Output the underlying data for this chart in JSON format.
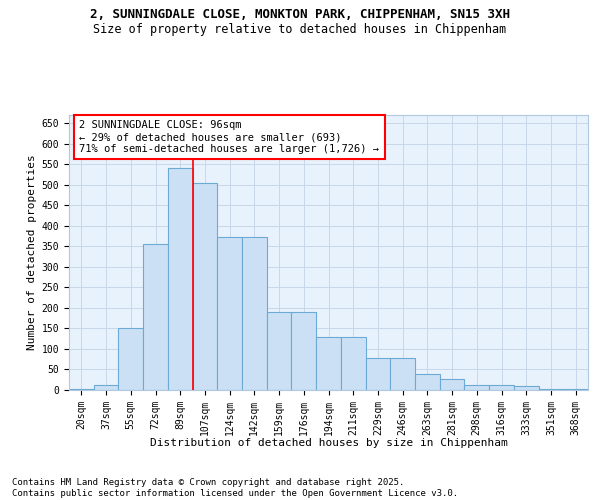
{
  "title_line1": "2, SUNNINGDALE CLOSE, MONKTON PARK, CHIPPENHAM, SN15 3XH",
  "title_line2": "Size of property relative to detached houses in Chippenham",
  "xlabel": "Distribution of detached houses by size in Chippenham",
  "ylabel": "Number of detached properties",
  "categories": [
    "20sqm",
    "37sqm",
    "55sqm",
    "72sqm",
    "89sqm",
    "107sqm",
    "124sqm",
    "142sqm",
    "159sqm",
    "176sqm",
    "194sqm",
    "211sqm",
    "229sqm",
    "246sqm",
    "263sqm",
    "281sqm",
    "298sqm",
    "316sqm",
    "333sqm",
    "351sqm",
    "368sqm"
  ],
  "values": [
    2,
    12,
    150,
    355,
    540,
    505,
    372,
    372,
    190,
    190,
    128,
    128,
    78,
    78,
    38,
    27,
    12,
    12,
    10,
    2,
    2
  ],
  "bar_color": "#cce0f5",
  "bar_edge_color": "#6aaad4",
  "vline_color": "red",
  "vline_x_index": 4,
  "annotation_text": "2 SUNNINGDALE CLOSE: 96sqm\n← 29% of detached houses are smaller (693)\n71% of semi-detached houses are larger (1,726) →",
  "annotation_box_color": "white",
  "annotation_box_edge_color": "red",
  "ylim": [
    0,
    670
  ],
  "yticks": [
    0,
    50,
    100,
    150,
    200,
    250,
    300,
    350,
    400,
    450,
    500,
    550,
    600,
    650
  ],
  "grid_color": "#c8d8e8",
  "bg_color": "#e8f2fc",
  "footer_text": "Contains HM Land Registry data © Crown copyright and database right 2025.\nContains public sector information licensed under the Open Government Licence v3.0.",
  "title_fontsize": 9,
  "subtitle_fontsize": 8.5,
  "axis_label_fontsize": 8,
  "tick_fontsize": 7,
  "annotation_fontsize": 7.5,
  "footer_fontsize": 6.5
}
